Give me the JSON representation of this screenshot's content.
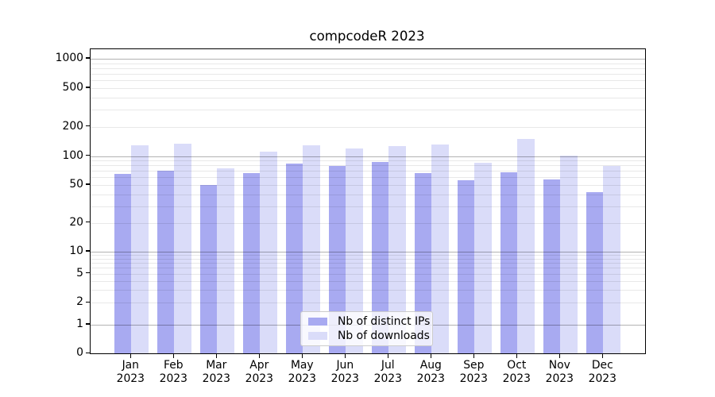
{
  "chart_data": {
    "type": "bar",
    "title": "compcodeR 2023",
    "categories": [
      "Jan",
      "Feb",
      "Mar",
      "Apr",
      "May",
      "Jun",
      "Jul",
      "Aug",
      "Sep",
      "Oct",
      "Nov",
      "Dec"
    ],
    "category_year": "2023",
    "series": [
      {
        "name": "Nb of distinct IPs",
        "color": "#a8aaf1",
        "values": [
          65,
          70,
          50,
          66,
          83,
          78,
          86,
          66,
          56,
          68,
          57,
          42
        ]
      },
      {
        "name": "Nb of downloads",
        "color": "#dadcf9",
        "values": [
          128,
          133,
          74,
          110,
          128,
          119,
          127,
          132,
          85,
          150,
          100,
          78
        ]
      }
    ],
    "yscale": "symlog",
    "yticks": [
      0,
      1,
      2,
      5,
      10,
      20,
      50,
      100,
      200,
      500,
      1000
    ],
    "ylim": [
      0,
      1270
    ],
    "grid": true,
    "legend_position": "lower-center"
  }
}
